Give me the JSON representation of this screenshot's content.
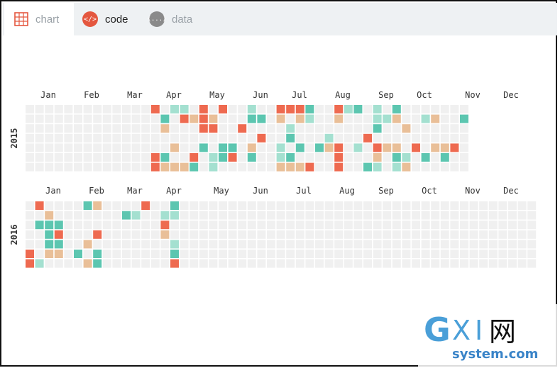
{
  "tabs": [
    {
      "label": "chart",
      "icon": "grid-chart-icon"
    },
    {
      "label": "code",
      "icon": "code-icon",
      "icon_text": "</>"
    },
    {
      "label": "data",
      "icon": "data-braces-icon",
      "icon_text": "{...}"
    }
  ],
  "active_tab": "code",
  "watermark": {
    "brand": "GXI网",
    "domain": "system.com"
  },
  "colors": {
    "empty": "#f0f0f0",
    "level1": "#a4e0d0",
    "level2": "#5cc6b0",
    "level3": "#e9bf98",
    "level4": "#ee6a50",
    "tab_bar": "#eef1f3",
    "code_icon": "#e4573f"
  },
  "chart_data": {
    "type": "heatmap",
    "layout": "calendar",
    "value_scale": "categorical levels 0-4",
    "years": [
      {
        "year": "2015",
        "month_labels": [
          "Jan",
          "Feb",
          "Mar",
          "Apr",
          "May",
          "Jun",
          "Jul",
          "Aug",
          "Sep",
          "Oct",
          "Nov",
          "Dec"
        ],
        "weeks": [
          [
            0,
            0,
            0,
            0,
            0,
            0,
            0
          ],
          [
            0,
            0,
            0,
            0,
            0,
            0,
            0
          ],
          [
            0,
            0,
            0,
            0,
            0,
            0,
            0
          ],
          [
            0,
            0,
            0,
            0,
            0,
            0,
            0
          ],
          [
            0,
            0,
            0,
            0,
            0,
            0,
            0
          ],
          [
            0,
            0,
            0,
            0,
            0,
            0,
            0
          ],
          [
            0,
            0,
            0,
            0,
            0,
            0,
            0
          ],
          [
            0,
            0,
            0,
            0,
            0,
            0,
            0
          ],
          [
            0,
            0,
            0,
            0,
            0,
            0,
            0
          ],
          [
            0,
            0,
            0,
            0,
            0,
            0,
            0
          ],
          [
            0,
            0,
            0,
            0,
            0,
            0,
            0
          ],
          [
            0,
            0,
            0,
            0,
            0,
            0,
            0
          ],
          [
            0,
            0,
            0,
            0,
            0,
            0,
            0
          ],
          [
            4,
            0,
            0,
            0,
            0,
            4,
            4
          ],
          [
            0,
            2,
            3,
            0,
            0,
            2,
            3
          ],
          [
            1,
            0,
            0,
            0,
            3,
            0,
            3
          ],
          [
            1,
            4,
            0,
            0,
            0,
            0,
            3
          ],
          [
            0,
            3,
            0,
            0,
            0,
            4,
            2
          ],
          [
            4,
            4,
            4,
            0,
            2,
            0,
            0
          ],
          [
            0,
            3,
            4,
            0,
            0,
            1,
            1
          ],
          [
            4,
            0,
            0,
            0,
            2,
            2,
            0
          ],
          [
            0,
            0,
            0,
            0,
            2,
            4,
            0
          ],
          [
            0,
            0,
            4,
            0,
            0,
            0,
            0
          ],
          [
            1,
            2,
            0,
            0,
            3,
            2,
            0
          ],
          [
            0,
            2,
            0,
            4,
            0,
            0,
            0
          ],
          [
            0,
            0,
            0,
            0,
            0,
            0,
            0
          ],
          [
            4,
            3,
            0,
            0,
            1,
            1,
            3
          ],
          [
            4,
            0,
            1,
            2,
            0,
            2,
            3
          ],
          [
            4,
            3,
            0,
            0,
            2,
            0,
            3
          ],
          [
            2,
            1,
            0,
            0,
            0,
            0,
            4
          ],
          [
            0,
            0,
            0,
            0,
            2,
            0,
            0
          ],
          [
            0,
            0,
            0,
            1,
            3,
            0,
            0
          ],
          [
            4,
            3,
            0,
            0,
            4,
            4,
            4
          ],
          [
            1,
            0,
            0,
            0,
            0,
            0,
            0
          ],
          [
            2,
            0,
            0,
            0,
            1,
            0,
            0
          ],
          [
            0,
            0,
            0,
            4,
            0,
            0,
            2
          ],
          [
            1,
            1,
            2,
            0,
            4,
            3,
            1
          ],
          [
            0,
            1,
            0,
            0,
            3,
            0,
            0
          ],
          [
            2,
            3,
            0,
            0,
            3,
            2,
            1
          ],
          [
            0,
            0,
            3,
            0,
            0,
            1,
            3
          ],
          [
            0,
            0,
            0,
            0,
            4,
            0,
            0
          ],
          [
            0,
            1,
            0,
            0,
            0,
            2,
            0
          ],
          [
            0,
            3,
            0,
            0,
            3,
            0,
            0
          ],
          [
            0,
            0,
            0,
            0,
            3,
            2,
            0
          ],
          [
            0,
            0,
            0,
            0,
            4,
            0,
            0
          ],
          [
            0,
            2,
            0,
            0,
            0,
            0,
            0
          ]
        ]
      },
      {
        "year": "2016",
        "month_labels": [
          "Jan",
          "Feb",
          "Mar",
          "Apr",
          "May",
          "Jun",
          "Jul",
          "Aug",
          "Sep",
          "Oct",
          "Nov",
          "Dec"
        ],
        "weeks": [
          [
            0,
            0,
            0,
            0,
            0,
            4,
            4
          ],
          [
            4,
            0,
            2,
            0,
            0,
            0,
            1
          ],
          [
            0,
            3,
            2,
            2,
            2,
            3,
            0
          ],
          [
            0,
            0,
            2,
            4,
            2,
            3,
            0
          ],
          [
            0,
            0,
            0,
            0,
            0,
            0,
            0
          ],
          [
            0,
            0,
            0,
            0,
            0,
            2,
            0
          ],
          [
            2,
            0,
            0,
            0,
            3,
            0,
            3
          ],
          [
            3,
            0,
            0,
            4,
            0,
            2,
            2
          ],
          [
            0,
            0,
            0,
            0,
            0,
            0,
            0
          ],
          [
            0,
            0,
            0,
            0,
            0,
            0,
            0
          ],
          [
            0,
            2,
            0,
            0,
            0,
            0,
            0
          ],
          [
            0,
            1,
            0,
            0,
            0,
            0,
            0
          ],
          [
            4,
            0,
            0,
            0,
            0,
            0,
            0
          ],
          [
            0,
            0,
            0,
            0,
            0,
            0,
            0
          ],
          [
            0,
            1,
            4,
            3,
            0,
            0,
            0
          ],
          [
            2,
            1,
            0,
            0,
            1,
            2,
            4
          ],
          [
            0,
            0,
            0,
            0,
            0,
            0,
            0
          ],
          [
            0,
            0,
            0,
            0,
            0,
            0,
            0
          ],
          [
            0,
            0,
            0,
            0,
            0,
            0,
            0
          ],
          [
            0,
            0,
            0,
            0,
            0,
            0,
            0
          ],
          [
            0,
            0,
            0,
            0,
            0,
            0,
            0
          ],
          [
            0,
            0,
            0,
            0,
            0,
            0,
            0
          ],
          [
            0,
            0,
            0,
            0,
            0,
            0,
            0
          ],
          [
            0,
            0,
            0,
            0,
            0,
            0,
            0
          ],
          [
            0,
            0,
            0,
            0,
            0,
            0,
            0
          ],
          [
            0,
            0,
            0,
            0,
            0,
            0,
            0
          ],
          [
            0,
            0,
            0,
            0,
            0,
            0,
            0
          ],
          [
            0,
            0,
            0,
            0,
            0,
            0,
            0
          ],
          [
            0,
            0,
            0,
            0,
            0,
            0,
            0
          ],
          [
            0,
            0,
            0,
            0,
            0,
            0,
            0
          ],
          [
            0,
            0,
            0,
            0,
            0,
            0,
            0
          ],
          [
            0,
            0,
            0,
            0,
            0,
            0,
            0
          ],
          [
            0,
            0,
            0,
            0,
            0,
            0,
            0
          ],
          [
            0,
            0,
            0,
            0,
            0,
            0,
            0
          ],
          [
            0,
            0,
            0,
            0,
            0,
            0,
            0
          ],
          [
            0,
            0,
            0,
            0,
            0,
            0,
            0
          ],
          [
            0,
            0,
            0,
            0,
            0,
            0,
            0
          ],
          [
            0,
            0,
            0,
            0,
            0,
            0,
            0
          ],
          [
            0,
            0,
            0,
            0,
            0,
            0,
            0
          ],
          [
            0,
            0,
            0,
            0,
            0,
            0,
            0
          ],
          [
            0,
            0,
            0,
            0,
            0,
            0,
            0
          ],
          [
            0,
            0,
            0,
            0,
            0,
            0,
            0
          ],
          [
            0,
            0,
            0,
            0,
            0,
            0,
            0
          ],
          [
            0,
            0,
            0,
            0,
            0,
            0,
            0
          ],
          [
            0,
            0,
            0,
            0,
            0,
            0,
            0
          ],
          [
            0,
            0,
            0,
            0,
            0,
            0,
            0
          ],
          [
            0,
            0,
            0,
            0,
            0,
            0,
            0
          ],
          [
            0,
            0,
            0,
            0,
            0,
            0,
            0
          ],
          [
            0,
            0,
            0,
            0,
            0,
            0,
            0
          ],
          [
            0,
            0,
            0,
            0,
            0,
            0,
            0
          ],
          [
            0,
            0,
            0,
            0,
            0,
            0,
            0
          ],
          [
            0,
            0,
            0,
            0,
            0,
            0,
            0
          ],
          [
            0,
            0,
            0,
            0,
            0,
            0,
            0
          ]
        ]
      }
    ]
  }
}
